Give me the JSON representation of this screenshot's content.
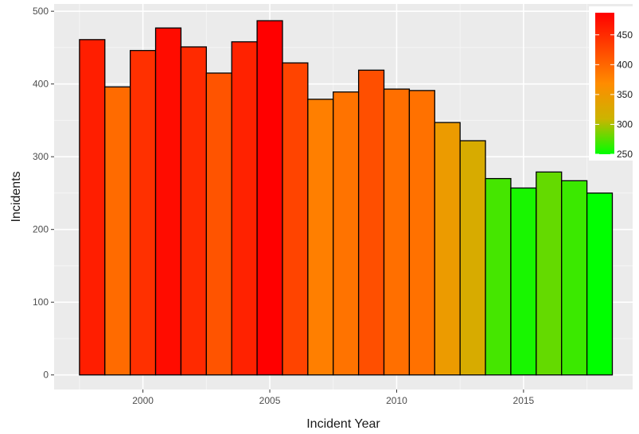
{
  "chart_data": {
    "type": "bar",
    "title": "",
    "xlabel": "Incident Year",
    "ylabel": "Incidents",
    "x": [
      1998,
      1999,
      2000,
      2001,
      2002,
      2003,
      2004,
      2005,
      2006,
      2007,
      2008,
      2009,
      2010,
      2011,
      2012,
      2013,
      2014,
      2015,
      2016,
      2017,
      2018
    ],
    "values": [
      461,
      396,
      446,
      477,
      451,
      415,
      458,
      487,
      429,
      379,
      389,
      419,
      393,
      391,
      347,
      322,
      270,
      257,
      279,
      267,
      250
    ],
    "xlim": [
      1996.5,
      2019.3
    ],
    "ylim": [
      -20,
      510
    ],
    "xticks": [
      2000,
      2005,
      2010,
      2015
    ],
    "xtick_labels": [
      "2000",
      "2005",
      "2010",
      "2015"
    ],
    "yticks": [
      0,
      100,
      200,
      300,
      400,
      500
    ],
    "ytick_labels": [
      "0",
      "100",
      "200",
      "300",
      "400",
      "500"
    ],
    "grid": true,
    "legend": {
      "position": "top-right",
      "gradient_colors": [
        "#ff0000",
        "#ff4500",
        "#ff8c00",
        "#ccb400",
        "#00ff00"
      ],
      "range": [
        250,
        487
      ],
      "ticks": [
        250,
        300,
        350,
        400,
        450
      ],
      "tick_labels": [
        "250",
        "300",
        "350",
        "400",
        "450"
      ]
    },
    "colors": {
      "panel_background": "#ebebeb",
      "grid_major": "#ffffff",
      "bar_outline": "#000000"
    }
  }
}
